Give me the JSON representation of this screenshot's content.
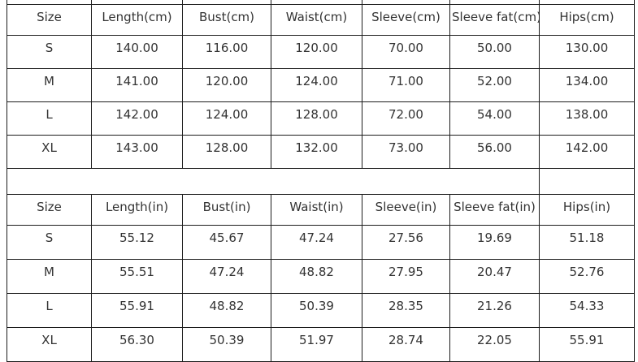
{
  "page": {
    "background_color": "#ffffff",
    "text_color": "#333333",
    "border_color": "#1c1c1c"
  },
  "size_chart": {
    "tables": [
      {
        "unit": "cm",
        "headers": [
          "Size",
          "Length(cm)",
          "Bust(cm)",
          "Waist(cm)",
          "Sleeve(cm)",
          "Sleeve fat(cm)",
          "Hips(cm)"
        ],
        "rows": [
          [
            "S",
            "140.00",
            "116.00",
            "120.00",
            "70.00",
            "50.00",
            "130.00"
          ],
          [
            "M",
            "141.00",
            "120.00",
            "124.00",
            "71.00",
            "52.00",
            "134.00"
          ],
          [
            "L",
            "142.00",
            "124.00",
            "128.00",
            "72.00",
            "54.00",
            "138.00"
          ],
          [
            "XL",
            "143.00",
            "128.00",
            "132.00",
            "73.00",
            "56.00",
            "142.00"
          ]
        ]
      },
      {
        "unit": "in",
        "headers": [
          "Size",
          "Length(in)",
          "Bust(in)",
          "Waist(in)",
          "Sleeve(in)",
          "Sleeve fat(in)",
          "Hips(in)"
        ],
        "rows": [
          [
            "S",
            "55.12",
            "45.67",
            "47.24",
            "27.56",
            "19.69",
            "51.18"
          ],
          [
            "M",
            "55.51",
            "47.24",
            "48.82",
            "27.95",
            "20.47",
            "52.76"
          ],
          [
            "L",
            "55.91",
            "48.82",
            "50.39",
            "28.35",
            "21.26",
            "54.33"
          ],
          [
            "XL",
            "56.30",
            "50.39",
            "51.97",
            "28.74",
            "22.05",
            "55.91"
          ]
        ]
      }
    ]
  }
}
